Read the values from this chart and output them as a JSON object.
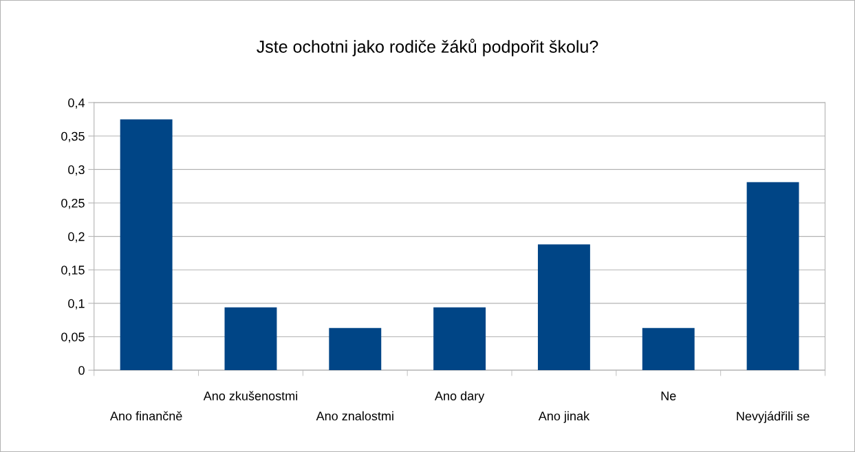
{
  "chart_data": {
    "type": "bar",
    "title": "Jste ochotni jako rodiče žáků podpořit školu?",
    "categories": [
      "Ano finančně",
      "Ano zkušenostmi",
      "Ano znalostmi",
      "Ano dary",
      "Ano jinak",
      "Ne",
      "Nevyjádřili se"
    ],
    "values": [
      0.375,
      0.094,
      0.063,
      0.094,
      0.188,
      0.063,
      0.281
    ],
    "color": "#004586",
    "ylim": [
      0,
      0.4
    ],
    "yticks": [
      {
        "value": 0,
        "label": "0"
      },
      {
        "value": 0.05,
        "label": "0,05"
      },
      {
        "value": 0.1,
        "label": "0,1"
      },
      {
        "value": 0.15,
        "label": "0,15"
      },
      {
        "value": 0.2,
        "label": "0,2"
      },
      {
        "value": 0.25,
        "label": "0,25"
      },
      {
        "value": 0.3,
        "label": "0,3"
      },
      {
        "value": 0.35,
        "label": "0,35"
      },
      {
        "value": 0.4,
        "label": "0,4"
      }
    ],
    "grid": "y",
    "legend": false
  }
}
